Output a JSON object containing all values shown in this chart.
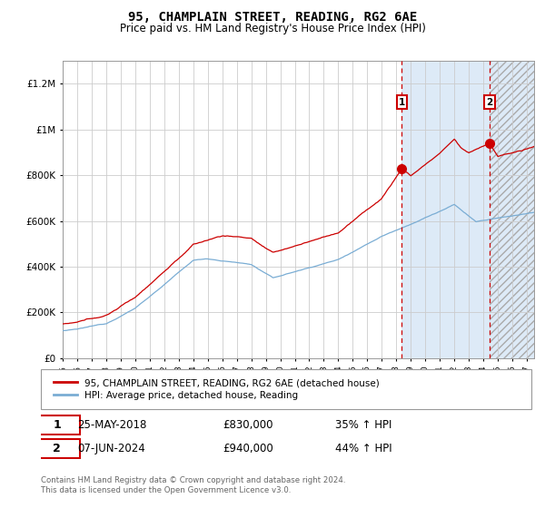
{
  "title": "95, CHAMPLAIN STREET, READING, RG2 6AE",
  "subtitle": "Price paid vs. HM Land Registry's House Price Index (HPI)",
  "ylabel_ticks": [
    "£0",
    "£200K",
    "£400K",
    "£600K",
    "£800K",
    "£1M",
    "£1.2M"
  ],
  "ytick_values": [
    0,
    200000,
    400000,
    600000,
    800000,
    1000000,
    1200000
  ],
  "ylim": [
    0,
    1300000
  ],
  "xlim_start": 1995.0,
  "xlim_end": 2027.5,
  "marker1_x": 2018.38,
  "marker1_price": 830000,
  "marker2_x": 2024.44,
  "marker2_price": 940000,
  "legend_line1": "95, CHAMPLAIN STREET, READING, RG2 6AE (detached house)",
  "legend_line2": "HPI: Average price, detached house, Reading",
  "footer": "Contains HM Land Registry data © Crown copyright and database right 2024.\nThis data is licensed under the Open Government Licence v3.0.",
  "red_line_color": "#cc0000",
  "blue_line_color": "#7aadd4",
  "bg_white": "#ffffff",
  "bg_blue": "#ddeaf7",
  "bg_hatch_color": "#c8d8e8",
  "grid_color": "#cccccc",
  "vline_color": "#cc0000",
  "blue_shade_start": 2018.38,
  "hatch_start": 2024.44
}
